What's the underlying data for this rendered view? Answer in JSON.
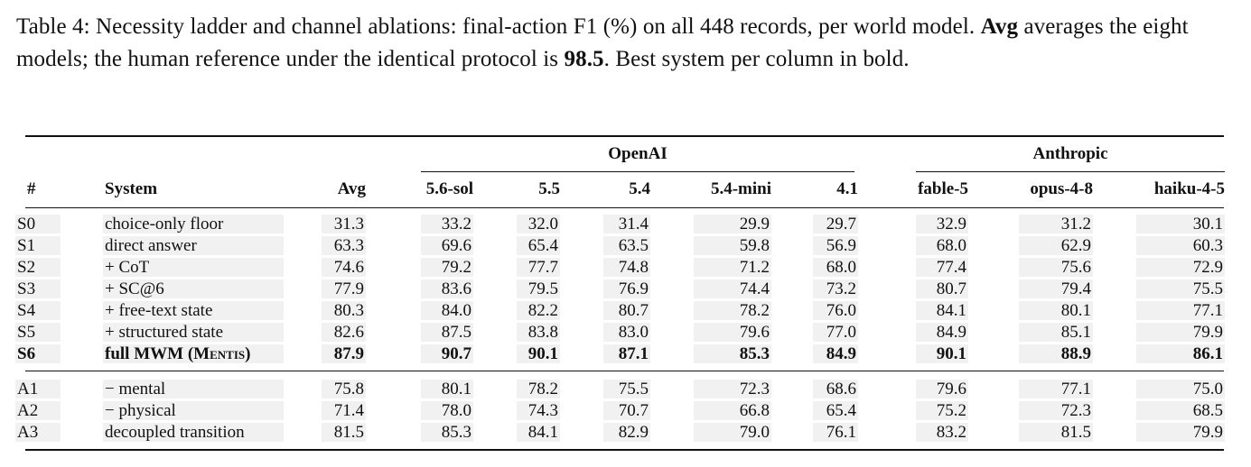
{
  "caption": {
    "label": "Table 4:",
    "text_1": "Necessity ladder and channel ablations: final-action F1 (%) on all 448 records, per world model.",
    "bold_1": "Avg",
    "text_2": "averages the eight models; the human reference under the identical protocol is",
    "bold_2": "98.5",
    "text_3": ". Best system per column in bold."
  },
  "groups": {
    "openai": "OpenAI",
    "anthropic": "Anthropic"
  },
  "headers": {
    "id": "#",
    "system": "System",
    "avg": "Avg",
    "models": [
      "5.6-sol",
      "5.5",
      "5.4",
      "5.4-mini",
      "4.1",
      "fable-5",
      "opus-4-8",
      "haiku-4-5"
    ]
  },
  "rows": [
    {
      "id": "S0",
      "system": "choice-only floor",
      "avg": "31.3",
      "values": [
        "33.2",
        "32.0",
        "31.4",
        "29.9",
        "29.7",
        "32.9",
        "31.2",
        "30.1"
      ]
    },
    {
      "id": "S1",
      "system": "direct answer",
      "avg": "63.3",
      "values": [
        "69.6",
        "65.4",
        "63.5",
        "59.8",
        "56.9",
        "68.0",
        "62.9",
        "60.3"
      ]
    },
    {
      "id": "S2",
      "system": "+ CoT",
      "avg": "74.6",
      "values": [
        "79.2",
        "77.7",
        "74.8",
        "71.2",
        "68.0",
        "77.4",
        "75.6",
        "72.9"
      ]
    },
    {
      "id": "S3",
      "system": "+ SC@6",
      "avg": "77.9",
      "values": [
        "83.6",
        "79.5",
        "76.9",
        "74.4",
        "73.2",
        "80.7",
        "79.4",
        "75.5"
      ]
    },
    {
      "id": "S4",
      "system": "+ free-text state",
      "avg": "80.3",
      "values": [
        "84.0",
        "82.2",
        "80.7",
        "78.2",
        "76.0",
        "84.1",
        "80.1",
        "77.1"
      ]
    },
    {
      "id": "S5",
      "system": "+ structured state",
      "avg": "82.6",
      "values": [
        "87.5",
        "83.8",
        "83.0",
        "79.6",
        "77.0",
        "84.9",
        "85.1",
        "79.9"
      ]
    },
    {
      "id": "S6",
      "system_prefix": "full MWM (",
      "system_name": "Mentis",
      "system_suffix": ")",
      "avg": "87.9",
      "values": [
        "90.7",
        "90.1",
        "87.1",
        "85.3",
        "84.9",
        "90.1",
        "88.9",
        "86.1"
      ]
    },
    {
      "id": "A1",
      "system": "− mental",
      "avg": "75.8",
      "values": [
        "80.1",
        "78.2",
        "75.5",
        "72.3",
        "68.6",
        "79.6",
        "77.1",
        "75.0"
      ]
    },
    {
      "id": "A2",
      "system": "− physical",
      "avg": "71.4",
      "values": [
        "78.0",
        "74.3",
        "70.7",
        "66.8",
        "65.4",
        "75.2",
        "72.3",
        "68.5"
      ]
    },
    {
      "id": "A3",
      "system": "decoupled transition",
      "avg": "81.5",
      "values": [
        "85.3",
        "84.1",
        "82.9",
        "79.0",
        "76.1",
        "83.2",
        "81.5",
        "79.9"
      ]
    }
  ]
}
